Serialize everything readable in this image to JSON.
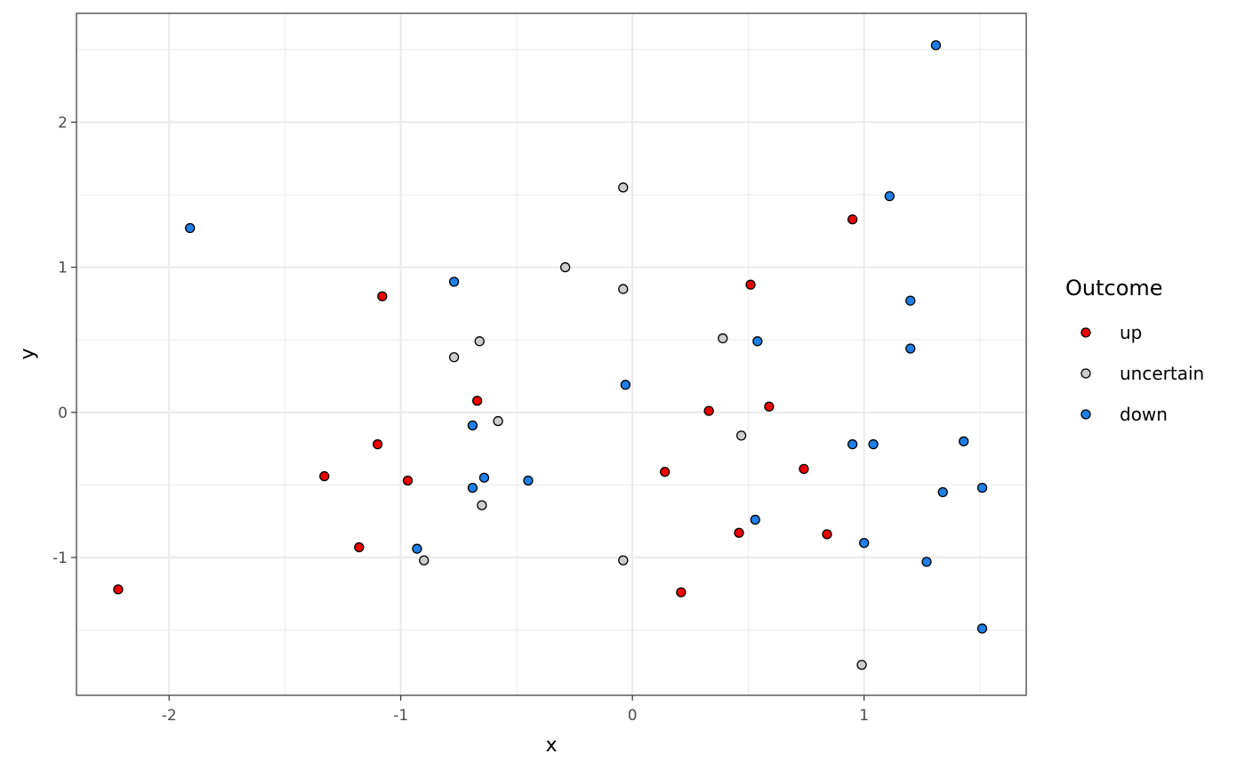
{
  "chart_data": {
    "type": "scatter",
    "xlabel": "x",
    "ylabel": "y",
    "xlim": [
      -2.4,
      1.7
    ],
    "ylim": [
      -1.95,
      2.75
    ],
    "x_ticks": [
      -2,
      -1,
      0,
      1
    ],
    "x_tick_labels": [
      "-2",
      "-1",
      "0",
      "1"
    ],
    "y_ticks": [
      -1,
      0,
      1,
      2
    ],
    "y_tick_labels": [
      "-1",
      "0",
      "1",
      "2"
    ],
    "grid": true,
    "legend": {
      "title": "Outcome",
      "placement": "right"
    },
    "series": [
      {
        "name": "up",
        "color": "#ee0000",
        "points": [
          [
            -2.22,
            -1.22
          ],
          [
            -1.33,
            -0.44
          ],
          [
            -1.18,
            -0.93
          ],
          [
            -1.1,
            -0.22
          ],
          [
            -1.08,
            0.8
          ],
          [
            -0.97,
            -0.47
          ],
          [
            -0.67,
            0.08
          ],
          [
            0.14,
            -0.41
          ],
          [
            0.21,
            -1.24
          ],
          [
            0.33,
            0.01
          ],
          [
            0.46,
            -0.83
          ],
          [
            0.51,
            0.88
          ],
          [
            0.59,
            0.04
          ],
          [
            0.74,
            -0.39
          ],
          [
            0.84,
            -0.84
          ],
          [
            0.95,
            1.33
          ]
        ]
      },
      {
        "name": "uncertain",
        "color": "#cccccc",
        "points": [
          [
            -0.9,
            -1.02
          ],
          [
            -0.77,
            0.38
          ],
          [
            -0.66,
            0.49
          ],
          [
            -0.65,
            -0.64
          ],
          [
            -0.58,
            -0.06
          ],
          [
            -0.29,
            1.0
          ],
          [
            -0.04,
            1.55
          ],
          [
            -0.04,
            0.85
          ],
          [
            -0.04,
            -1.02
          ],
          [
            0.39,
            0.51
          ],
          [
            0.47,
            -0.16
          ],
          [
            0.99,
            -1.74
          ]
        ]
      },
      {
        "name": "down",
        "color": "#1e7fe6",
        "points": [
          [
            -1.91,
            1.27
          ],
          [
            -0.93,
            -0.94
          ],
          [
            -0.77,
            0.9
          ],
          [
            -0.69,
            -0.52
          ],
          [
            -0.69,
            -0.09
          ],
          [
            -0.64,
            -0.45
          ],
          [
            -0.45,
            -0.47
          ],
          [
            -0.03,
            0.19
          ],
          [
            0.53,
            -0.74
          ],
          [
            0.54,
            0.49
          ],
          [
            0.95,
            -0.22
          ],
          [
            1.0,
            -0.9
          ],
          [
            1.04,
            -0.22
          ],
          [
            1.11,
            1.49
          ],
          [
            1.2,
            0.77
          ],
          [
            1.2,
            0.44
          ],
          [
            1.27,
            -1.03
          ],
          [
            1.31,
            2.53
          ],
          [
            1.34,
            -0.55
          ],
          [
            1.43,
            -0.2
          ],
          [
            1.51,
            -0.52
          ],
          [
            1.51,
            -1.49
          ]
        ]
      }
    ]
  }
}
